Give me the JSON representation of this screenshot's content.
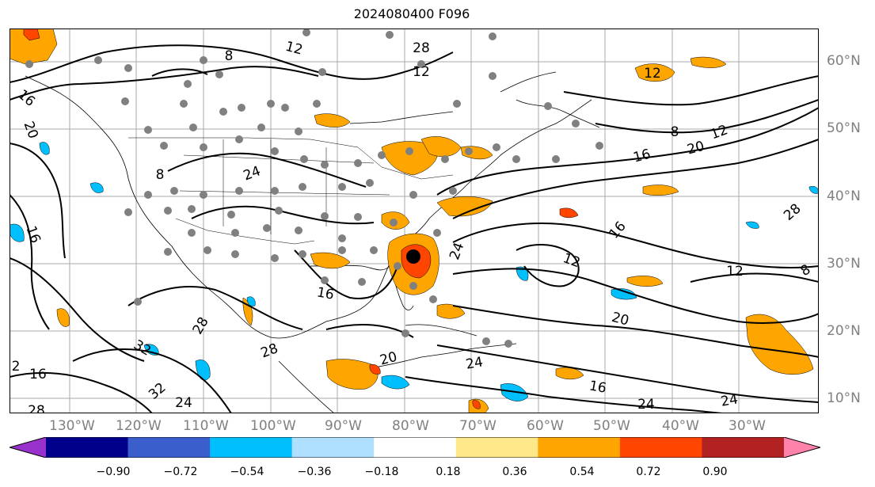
{
  "title": "2024080400 F096",
  "longitude_labels": [
    "130°W",
    "120°W",
    "110°W",
    "100°W",
    "90°W",
    "80°W",
    "70°W",
    "60°W",
    "50°W",
    "40°W",
    "30°W"
  ],
  "latitude_labels": [
    "60°N",
    "50°N",
    "40°N",
    "30°N",
    "20°N",
    "10°N"
  ],
  "contour_labels": [
    "12",
    "8",
    "16",
    "20",
    "8",
    "24",
    "12",
    "16",
    "20",
    "12",
    "8",
    "16",
    "12",
    "24",
    "20",
    "16",
    "16",
    "28",
    "24",
    "32",
    "32",
    "24",
    "28",
    "2",
    "16",
    "28",
    "20",
    "24",
    "16",
    "24",
    "28",
    "12",
    "8",
    "12",
    "28"
  ],
  "colorbar": {
    "ticks": [
      "−0.90",
      "−0.72",
      "−0.54",
      "−0.36",
      "−0.18",
      "0.18",
      "0.36",
      "0.54",
      "0.72",
      "0.90"
    ],
    "colors": [
      "#9932cc",
      "#00008b",
      "#3a5fcd",
      "#00bfff",
      "#afe0ff",
      "#ffffff",
      "#ffe88a",
      "#ffa500",
      "#ff4500",
      "#b22222",
      "#ff82ab"
    ]
  },
  "legend_colors": {
    "positive_fill": "#ffa500",
    "negative_fill": "#00bfff",
    "contour": "#000000",
    "station": "#808080",
    "storm_center": "#000000"
  }
}
